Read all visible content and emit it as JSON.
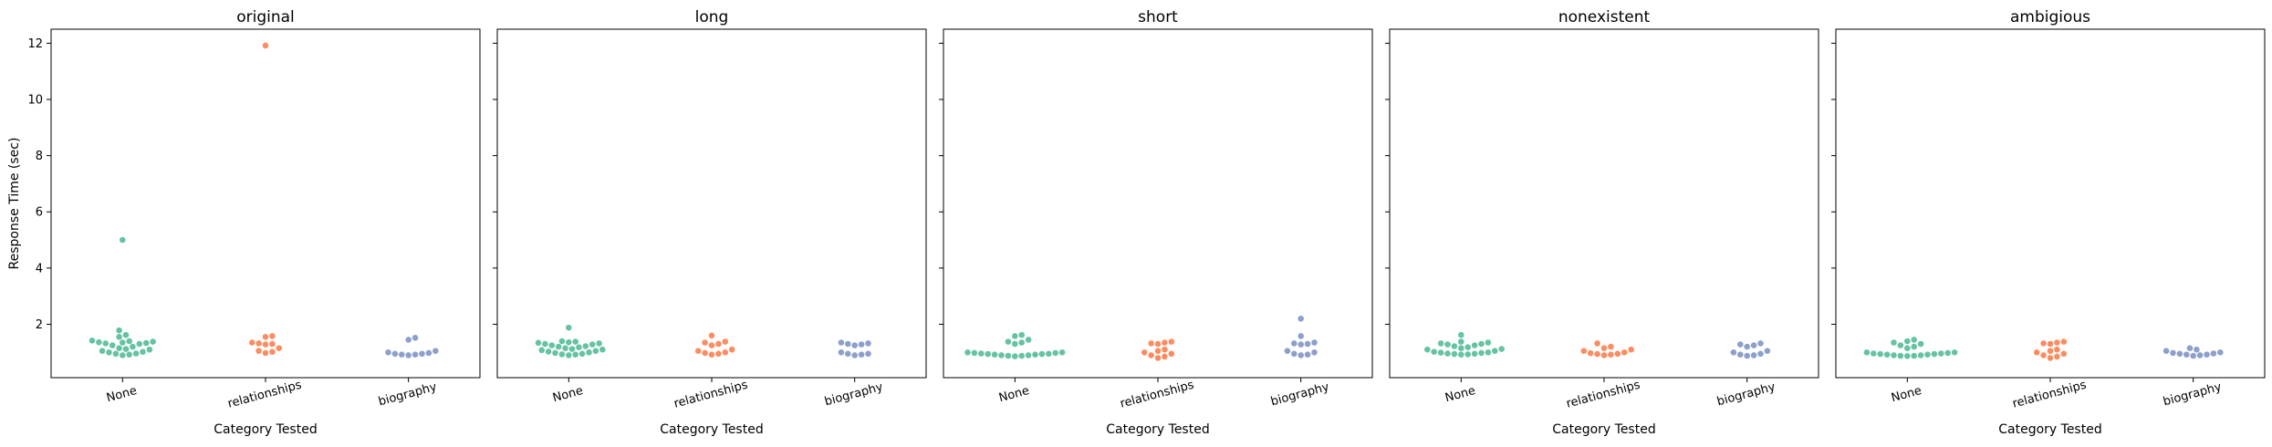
{
  "chart_data": {
    "type": "scatter",
    "style": "swarm",
    "shared_y": true,
    "ylabel": "Response Time (sec)",
    "xlabel": "Category Tested",
    "categories": [
      "None",
      "relationships",
      "biography"
    ],
    "category_colors": [
      "#66c2a5",
      "#fc8d62",
      "#8da0cb"
    ],
    "yticks": [
      2,
      4,
      6,
      8,
      10,
      12
    ],
    "ylim": [
      0.1,
      12.5
    ],
    "grid": false,
    "legend": "none",
    "panels": [
      {
        "title": "original",
        "series": [
          {
            "category": "None",
            "values": [
              1.42,
              1.38,
              1.35,
              1.33,
              1.3,
              1.32,
              1.36,
              1.4,
              1.78,
              1.62,
              1.55,
              1.25,
              1.2,
              1.15,
              1.1,
              1.05,
              1.0,
              0.96,
              0.92,
              0.9,
              0.95,
              1.02,
              1.12,
              5.0
            ]
          },
          {
            "category": "relationships",
            "values": [
              1.58,
              1.55,
              1.35,
              1.32,
              1.3,
              1.28,
              1.15,
              1.05,
              0.98,
              1.02,
              11.92
            ]
          },
          {
            "category": "biography",
            "values": [
              1.52,
              1.45,
              1.05,
              1.0,
              0.95,
              0.92,
              0.9,
              0.92,
              0.95,
              0.98
            ]
          }
        ]
      },
      {
        "title": "long",
        "series": [
          {
            "category": "None",
            "values": [
              1.88,
              1.4,
              1.36,
              1.34,
              1.3,
              1.28,
              1.25,
              1.22,
              1.2,
              1.15,
              1.1,
              1.05,
              1.0,
              0.95,
              0.92,
              0.9,
              0.93,
              0.98,
              1.03,
              1.08,
              1.12,
              1.18,
              1.32,
              1.38
            ]
          },
          {
            "category": "relationships",
            "values": [
              1.6,
              1.38,
              1.35,
              1.3,
              1.25,
              1.1,
              1.05,
              1.0,
              0.95,
              0.92,
              0.98
            ]
          },
          {
            "category": "biography",
            "values": [
              1.35,
              1.32,
              1.3,
              1.28,
              1.25,
              1.0,
              0.95,
              0.92,
              0.9,
              0.95
            ]
          }
        ]
      },
      {
        "title": "short",
        "series": [
          {
            "category": "None",
            "values": [
              1.62,
              1.58,
              1.45,
              1.38,
              1.35,
              1.3,
              1.0,
              0.98,
              0.95,
              0.94,
              0.92,
              0.9,
              0.88,
              0.86,
              0.88,
              0.9,
              0.92,
              0.94,
              0.96,
              0.98,
              1.0
            ]
          },
          {
            "category": "relationships",
            "values": [
              1.38,
              1.35,
              1.32,
              1.3,
              1.1,
              1.05,
              1.0,
              0.95,
              0.9,
              0.85,
              0.8
            ]
          },
          {
            "category": "biography",
            "values": [
              2.2,
              1.58,
              1.35,
              1.32,
              1.3,
              1.28,
              1.05,
              1.0,
              0.95,
              0.92,
              0.9
            ]
          }
        ]
      },
      {
        "title": "nonexistent",
        "series": [
          {
            "category": "None",
            "values": [
              1.62,
              1.38,
              1.35,
              1.32,
              1.3,
              1.28,
              1.25,
              1.22,
              1.18,
              1.15,
              1.12,
              1.1,
              1.05,
              1.02,
              1.0,
              0.98,
              0.95,
              0.93,
              0.92,
              0.94,
              0.96,
              0.99
            ]
          },
          {
            "category": "relationships",
            "values": [
              1.32,
              1.2,
              1.15,
              1.1,
              1.05,
              1.0,
              0.95,
              0.92,
              0.9,
              0.94,
              0.97
            ]
          },
          {
            "category": "biography",
            "values": [
              1.32,
              1.28,
              1.25,
              1.2,
              1.05,
              1.0,
              0.95,
              0.9,
              0.88,
              0.92
            ]
          }
        ]
      },
      {
        "title": "ambigious",
        "series": [
          {
            "category": "None",
            "values": [
              1.45,
              1.4,
              1.35,
              1.3,
              1.25,
              1.2,
              1.15,
              1.0,
              0.98,
              0.96,
              0.94,
              0.92,
              0.9,
              0.88,
              0.87,
              0.88,
              0.9,
              0.92,
              0.94,
              0.96,
              1.0
            ]
          },
          {
            "category": "relationships",
            "values": [
              1.38,
              1.35,
              1.32,
              1.3,
              1.1,
              1.05,
              1.0,
              0.95,
              0.9,
              0.85,
              0.8
            ]
          },
          {
            "category": "biography",
            "values": [
              1.15,
              1.1,
              1.05,
              1.0,
              0.98,
              0.95,
              0.92,
              0.9,
              0.88,
              0.92,
              0.96
            ]
          }
        ]
      }
    ]
  }
}
